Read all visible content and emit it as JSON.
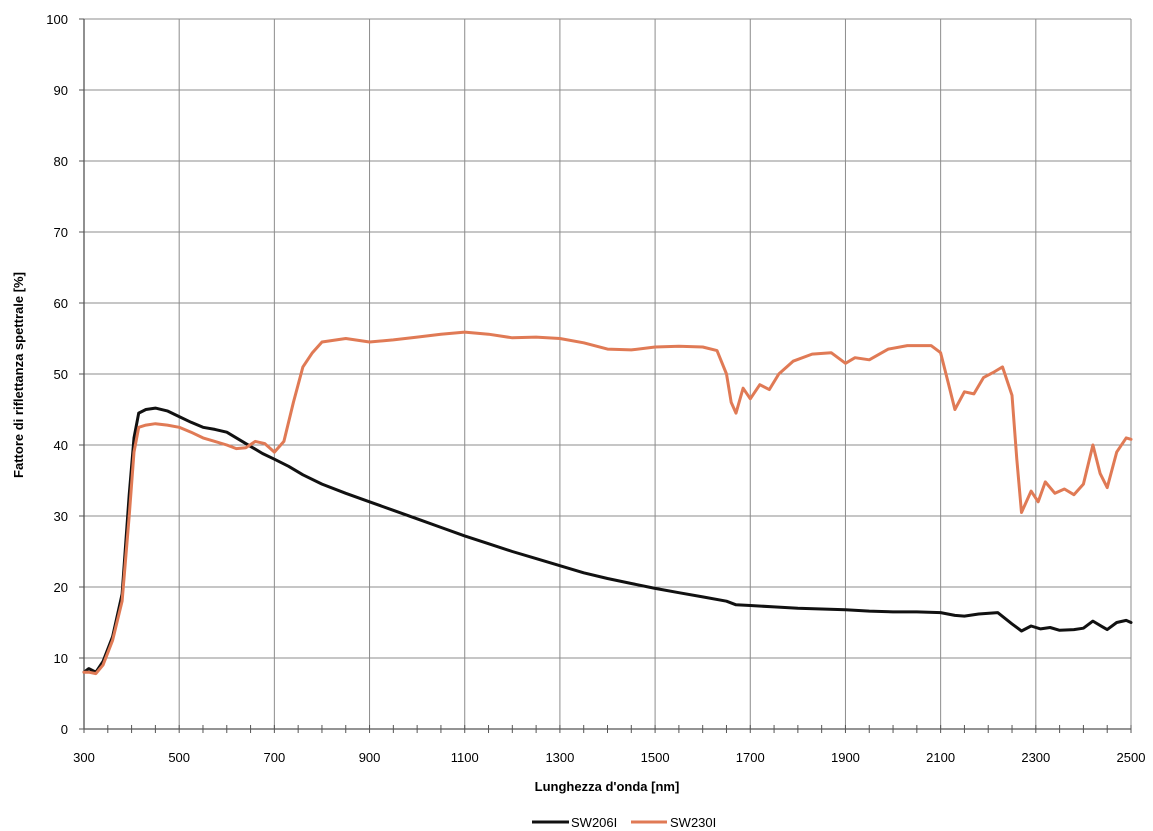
{
  "chart_data": {
    "type": "line",
    "xlabel": "Lunghezza d'onda [nm]",
    "ylabel": "Fattore di riflettanza spettrale [%]",
    "xlim": [
      300,
      2500
    ],
    "ylim": [
      0,
      100
    ],
    "xticks": [
      300,
      500,
      700,
      900,
      1100,
      1300,
      1500,
      1700,
      1900,
      2100,
      2300,
      2500
    ],
    "yticks": [
      0,
      10,
      20,
      30,
      40,
      50,
      60,
      70,
      80,
      90,
      100
    ],
    "grid": true,
    "legend_position": "bottom",
    "series": [
      {
        "name": "SW206I",
        "color": "#111111",
        "points": [
          [
            300,
            8
          ],
          [
            310,
            8.5
          ],
          [
            325,
            8
          ],
          [
            340,
            9.5
          ],
          [
            360,
            13
          ],
          [
            380,
            19
          ],
          [
            395,
            33
          ],
          [
            405,
            41
          ],
          [
            415,
            44.5
          ],
          [
            430,
            45
          ],
          [
            450,
            45.2
          ],
          [
            475,
            44.8
          ],
          [
            500,
            44
          ],
          [
            525,
            43.2
          ],
          [
            550,
            42.5
          ],
          [
            575,
            42.2
          ],
          [
            600,
            41.8
          ],
          [
            625,
            40.8
          ],
          [
            650,
            39.8
          ],
          [
            675,
            38.8
          ],
          [
            700,
            38
          ],
          [
            730,
            37
          ],
          [
            760,
            35.8
          ],
          [
            800,
            34.5
          ],
          [
            850,
            33.2
          ],
          [
            900,
            32
          ],
          [
            950,
            30.8
          ],
          [
            1000,
            29.6
          ],
          [
            1050,
            28.4
          ],
          [
            1100,
            27.2
          ],
          [
            1150,
            26.1
          ],
          [
            1200,
            25
          ],
          [
            1250,
            24
          ],
          [
            1300,
            23
          ],
          [
            1350,
            22
          ],
          [
            1400,
            21.2
          ],
          [
            1450,
            20.5
          ],
          [
            1500,
            19.8
          ],
          [
            1550,
            19.2
          ],
          [
            1600,
            18.6
          ],
          [
            1650,
            18
          ],
          [
            1670,
            17.5
          ],
          [
            1700,
            17.4
          ],
          [
            1750,
            17.2
          ],
          [
            1800,
            17
          ],
          [
            1850,
            16.9
          ],
          [
            1900,
            16.8
          ],
          [
            1950,
            16.6
          ],
          [
            2000,
            16.5
          ],
          [
            2050,
            16.5
          ],
          [
            2100,
            16.4
          ],
          [
            2130,
            16
          ],
          [
            2150,
            15.9
          ],
          [
            2180,
            16.2
          ],
          [
            2220,
            16.4
          ],
          [
            2250,
            14.8
          ],
          [
            2270,
            13.8
          ],
          [
            2290,
            14.5
          ],
          [
            2310,
            14.1
          ],
          [
            2330,
            14.3
          ],
          [
            2350,
            13.9
          ],
          [
            2380,
            14
          ],
          [
            2400,
            14.2
          ],
          [
            2420,
            15.2
          ],
          [
            2440,
            14.4
          ],
          [
            2450,
            14
          ],
          [
            2470,
            15
          ],
          [
            2490,
            15.3
          ],
          [
            2500,
            15
          ]
        ]
      },
      {
        "name": "SW230I",
        "color": "#e07a55",
        "points": [
          [
            300,
            8
          ],
          [
            310,
            8
          ],
          [
            325,
            7.8
          ],
          [
            340,
            9
          ],
          [
            360,
            12.5
          ],
          [
            380,
            18
          ],
          [
            395,
            30
          ],
          [
            405,
            39
          ],
          [
            415,
            42.5
          ],
          [
            430,
            42.8
          ],
          [
            450,
            43
          ],
          [
            475,
            42.8
          ],
          [
            500,
            42.5
          ],
          [
            525,
            41.8
          ],
          [
            550,
            41
          ],
          [
            575,
            40.5
          ],
          [
            600,
            40
          ],
          [
            620,
            39.5
          ],
          [
            640,
            39.6
          ],
          [
            660,
            40.5
          ],
          [
            680,
            40.2
          ],
          [
            700,
            39
          ],
          [
            720,
            40.5
          ],
          [
            740,
            46
          ],
          [
            760,
            51
          ],
          [
            780,
            53
          ],
          [
            800,
            54.5
          ],
          [
            850,
            55
          ],
          [
            900,
            54.5
          ],
          [
            950,
            54.8
          ],
          [
            1000,
            55.2
          ],
          [
            1050,
            55.6
          ],
          [
            1100,
            55.9
          ],
          [
            1150,
            55.6
          ],
          [
            1200,
            55.1
          ],
          [
            1250,
            55.2
          ],
          [
            1300,
            55
          ],
          [
            1350,
            54.4
          ],
          [
            1400,
            53.5
          ],
          [
            1450,
            53.4
          ],
          [
            1500,
            53.8
          ],
          [
            1550,
            53.9
          ],
          [
            1600,
            53.8
          ],
          [
            1630,
            53.3
          ],
          [
            1650,
            50
          ],
          [
            1660,
            46
          ],
          [
            1670,
            44.5
          ],
          [
            1685,
            48
          ],
          [
            1700,
            46.5
          ],
          [
            1720,
            48.5
          ],
          [
            1740,
            47.8
          ],
          [
            1760,
            50
          ],
          [
            1790,
            51.8
          ],
          [
            1830,
            52.8
          ],
          [
            1870,
            53
          ],
          [
            1900,
            51.5
          ],
          [
            1920,
            52.3
          ],
          [
            1950,
            52
          ],
          [
            1990,
            53.5
          ],
          [
            2030,
            54
          ],
          [
            2080,
            54
          ],
          [
            2100,
            53
          ],
          [
            2115,
            49
          ],
          [
            2130,
            45
          ],
          [
            2150,
            47.5
          ],
          [
            2170,
            47.2
          ],
          [
            2190,
            49.5
          ],
          [
            2210,
            50.2
          ],
          [
            2230,
            51
          ],
          [
            2250,
            47
          ],
          [
            2260,
            38
          ],
          [
            2270,
            30.5
          ],
          [
            2290,
            33.5
          ],
          [
            2305,
            32
          ],
          [
            2320,
            34.8
          ],
          [
            2340,
            33.2
          ],
          [
            2360,
            33.8
          ],
          [
            2380,
            33
          ],
          [
            2400,
            34.5
          ],
          [
            2420,
            40
          ],
          [
            2435,
            36
          ],
          [
            2450,
            34
          ],
          [
            2470,
            39
          ],
          [
            2490,
            41
          ],
          [
            2500,
            40.8
          ]
        ]
      }
    ]
  }
}
